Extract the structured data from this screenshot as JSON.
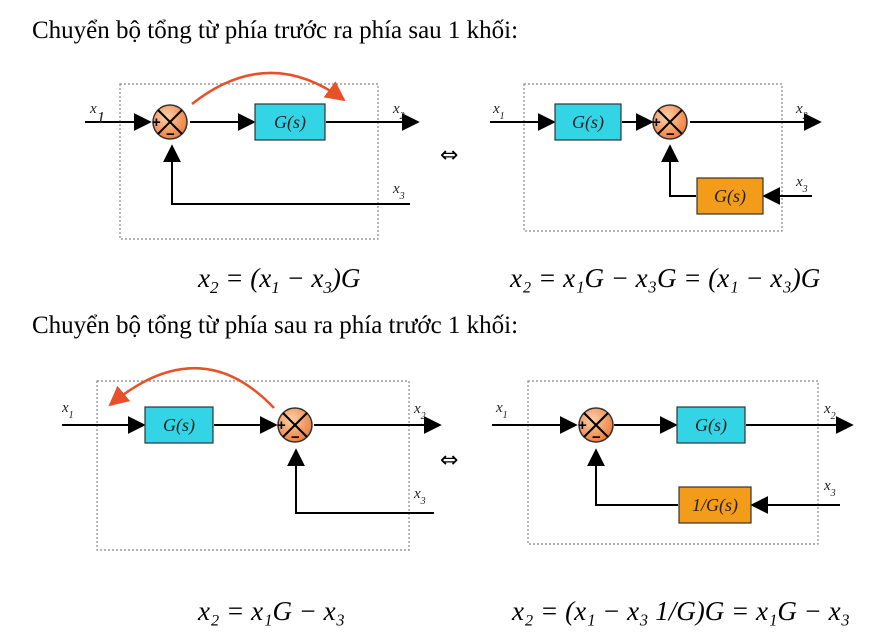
{
  "headings": {
    "forward_to_back": "Chuyển bộ tổng từ phía trước ra phía sau 1 khối:",
    "back_to_front": "Chuyển bộ tổng từ phía sau ra phía trước 1 khối:"
  },
  "labels": {
    "x1": "x",
    "x2": "x",
    "x3": "x",
    "sub1": "1",
    "sub2": "2",
    "sub3": "3"
  },
  "blocks": {
    "g": "G(s)",
    "inv_g": "1/G(s)"
  },
  "signs": {
    "plus": "+",
    "minus": "−"
  },
  "equiv_symbol": "⇔",
  "equations": {
    "top_left": {
      "lhs": "x",
      "lhs_sub": "2",
      "rhs": "= (x",
      "s1": "1",
      "mid": " − x",
      "s2": "3",
      "tail": ")G"
    },
    "top_right": "x₂ = x₁G − x₃G = (x₁ − x₃)G",
    "bottom_left": "x₂ = x₁G − x₃",
    "bottom_right": "x₂ = (x₁ − x₃ 1/G)G = x₁G − x₃"
  },
  "colors": {
    "block_g": "#33d4e6",
    "block_feedback": "#f39c1a",
    "sum_fill": "#f08040",
    "arc": "#e8502a",
    "box_border": "#888888"
  }
}
